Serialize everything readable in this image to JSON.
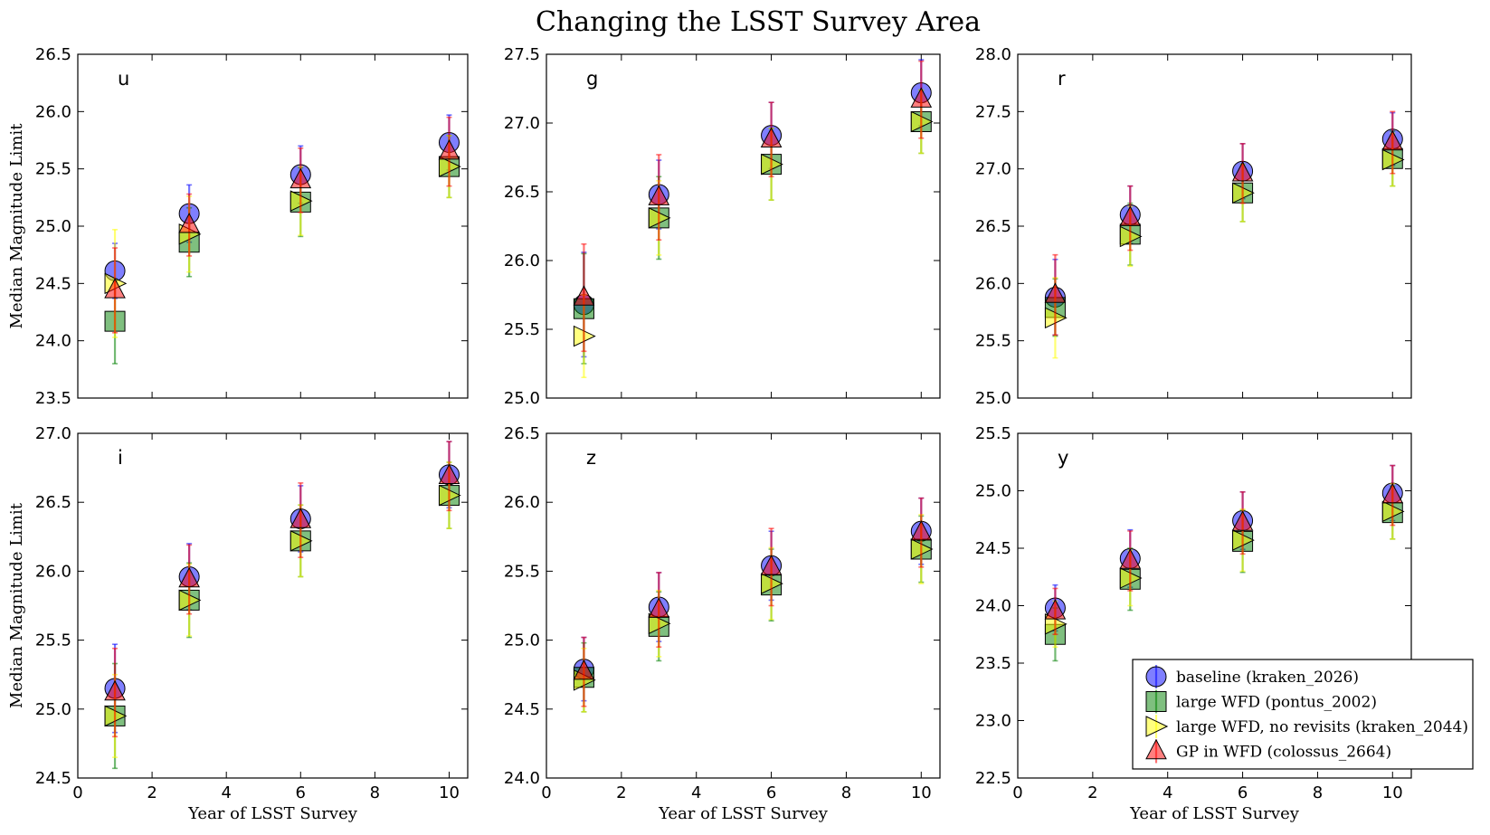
{
  "chart_data": {
    "type": "scatter",
    "title": "Changing the LSST Survey Area",
    "xlabel": "Year of LSST Survey",
    "ylabel": "Median Magnitude Limit",
    "x": [
      1,
      3,
      6,
      10
    ],
    "xlim": [
      0,
      10.5
    ],
    "xticks": [
      0,
      2,
      4,
      6,
      8,
      10
    ],
    "grid": false,
    "legend_location": "lower-right (y panel)",
    "series_styles": [
      {
        "name": "baseline (kraken_2026)",
        "marker": "circle",
        "color": "#0000ff"
      },
      {
        "name": "large WFD (pontus_2002)",
        "marker": "square",
        "color": "#008000"
      },
      {
        "name": "large WFD, no revisits (kraken_2044)",
        "marker": "triangle-right",
        "color": "#ffff00"
      },
      {
        "name": "GP in WFD (colossus_2664)",
        "marker": "triangle-up",
        "color": "#ff0000"
      }
    ],
    "panels": [
      {
        "label": "u",
        "ylim": [
          23.5,
          26.5
        ],
        "yticks": [
          23.5,
          24.0,
          24.5,
          25.0,
          25.5,
          26.0,
          26.5
        ],
        "series": [
          {
            "name": "baseline (kraken_2026)",
            "values": [
              24.61,
              25.11,
              25.45,
              25.73
            ],
            "err": [
              0.24,
              0.25,
              0.25,
              0.24
            ]
          },
          {
            "name": "large WFD (pontus_2002)",
            "values": [
              24.17,
              24.86,
              25.21,
              25.52
            ],
            "err": [
              0.37,
              0.3,
              0.3,
              0.27
            ]
          },
          {
            "name": "large WFD, no revisits (kraken_2044)",
            "values": [
              24.5,
              24.93,
              25.22,
              25.52
            ],
            "err": [
              0.47,
              0.33,
              0.3,
              0.27
            ]
          },
          {
            "name": "GP in WFD (colossus_2664)",
            "values": [
              24.44,
              25.01,
              25.4,
              25.65
            ],
            "err": [
              0.37,
              0.27,
              0.28,
              0.3
            ]
          }
        ]
      },
      {
        "label": "g",
        "ylim": [
          25.0,
          27.5
        ],
        "yticks": [
          25.0,
          25.5,
          26.0,
          26.5,
          27.0,
          27.5
        ],
        "series": [
          {
            "name": "baseline (kraken_2026)",
            "values": [
              25.68,
              26.48,
              26.91,
              27.22
            ],
            "err": [
              0.38,
              0.25,
              0.24,
              0.24
            ]
          },
          {
            "name": "large WFD (pontus_2002)",
            "values": [
              25.65,
              26.31,
              26.7,
              27.01
            ],
            "err": [
              0.4,
              0.3,
              0.26,
              0.23
            ]
          },
          {
            "name": "large WFD, no revisits (kraken_2044)",
            "values": [
              25.45,
              26.31,
              26.7,
              27.01
            ],
            "err": [
              0.3,
              0.27,
              0.26,
              0.23
            ]
          },
          {
            "name": "GP in WFD (colossus_2664)",
            "values": [
              25.73,
              26.46,
              26.88,
              27.17
            ],
            "err": [
              0.39,
              0.31,
              0.27,
              0.28
            ]
          }
        ]
      },
      {
        "label": "r",
        "ylim": [
          25.0,
          28.0
        ],
        "yticks": [
          25.0,
          25.5,
          26.0,
          26.5,
          27.0,
          27.5,
          28.0
        ],
        "series": [
          {
            "name": "baseline (kraken_2026)",
            "values": [
              25.88,
              26.6,
              26.98,
              27.26
            ],
            "err": [
              0.33,
              0.25,
              0.24,
              0.23
            ]
          },
          {
            "name": "large WFD (pontus_2002)",
            "values": [
              25.79,
              26.43,
              26.79,
              27.09
            ],
            "err": [
              0.25,
              0.27,
              0.25,
              0.24
            ]
          },
          {
            "name": "large WFD, no revisits (kraken_2044)",
            "values": [
              25.7,
              26.41,
              26.79,
              27.08
            ],
            "err": [
              0.35,
              0.26,
              0.25,
              0.23
            ]
          },
          {
            "name": "GP in WFD (colossus_2664)",
            "values": [
              25.9,
              26.57,
              26.96,
              27.23
            ],
            "err": [
              0.35,
              0.28,
              0.26,
              0.27
            ]
          }
        ]
      },
      {
        "label": "i",
        "ylim": [
          24.5,
          27.0
        ],
        "yticks": [
          24.5,
          25.0,
          25.5,
          26.0,
          26.5,
          27.0
        ],
        "series": [
          {
            "name": "baseline (kraken_2026)",
            "values": [
              25.15,
              25.96,
              26.38,
              26.7
            ],
            "err": [
              0.32,
              0.24,
              0.24,
              0.24
            ]
          },
          {
            "name": "large WFD (pontus_2002)",
            "values": [
              24.95,
              25.79,
              26.22,
              26.55
            ],
            "err": [
              0.38,
              0.27,
              0.26,
              0.24
            ]
          },
          {
            "name": "large WFD, no revisits (kraken_2044)",
            "values": [
              24.95,
              25.79,
              26.22,
              26.55
            ],
            "err": [
              0.3,
              0.26,
              0.26,
              0.24
            ]
          },
          {
            "name": "GP in WFD (colossus_2664)",
            "values": [
              25.12,
              25.94,
              26.37,
              26.69
            ],
            "err": [
              0.32,
              0.25,
              0.27,
              0.25
            ]
          }
        ]
      },
      {
        "label": "z",
        "ylim": [
          24.0,
          26.5
        ],
        "yticks": [
          24.0,
          24.5,
          25.0,
          25.5,
          26.0,
          26.5
        ],
        "series": [
          {
            "name": "baseline (kraken_2026)",
            "values": [
              24.79,
              25.24,
              25.54,
              25.79
            ],
            "err": [
              0.23,
              0.25,
              0.25,
              0.24
            ]
          },
          {
            "name": "large WFD (pontus_2002)",
            "values": [
              24.73,
              25.1,
              25.4,
              25.66
            ],
            "err": [
              0.25,
              0.25,
              0.26,
              0.24
            ]
          },
          {
            "name": "large WFD, no revisits (kraken_2044)",
            "values": [
              24.71,
              25.12,
              25.41,
              25.66
            ],
            "err": [
              0.23,
              0.24,
              0.26,
              0.25
            ]
          },
          {
            "name": "GP in WFD (colossus_2664)",
            "values": [
              24.77,
              25.22,
              25.53,
              25.78
            ],
            "err": [
              0.25,
              0.27,
              0.28,
              0.25
            ]
          }
        ]
      },
      {
        "label": "y",
        "ylim": [
          22.5,
          25.5
        ],
        "yticks": [
          22.5,
          23.0,
          23.5,
          24.0,
          24.5,
          25.0,
          25.5
        ],
        "series": [
          {
            "name": "baseline (kraken_2026)",
            "values": [
              23.98,
              24.41,
              24.74,
              24.98
            ],
            "err": [
              0.2,
              0.25,
              0.25,
              0.24
            ]
          },
          {
            "name": "large WFD (pontus_2002)",
            "values": [
              23.75,
              24.23,
              24.56,
              24.81
            ],
            "err": [
              0.23,
              0.27,
              0.27,
              0.23
            ]
          },
          {
            "name": "large WFD, no revisits (kraken_2044)",
            "values": [
              23.84,
              24.24,
              24.57,
              24.82
            ],
            "err": [
              0.2,
              0.24,
              0.27,
              0.24
            ]
          },
          {
            "name": "GP in WFD (colossus_2664)",
            "values": [
              23.95,
              24.39,
              24.72,
              24.96
            ],
            "err": [
              0.2,
              0.26,
              0.27,
              0.26
            ]
          }
        ]
      }
    ]
  }
}
